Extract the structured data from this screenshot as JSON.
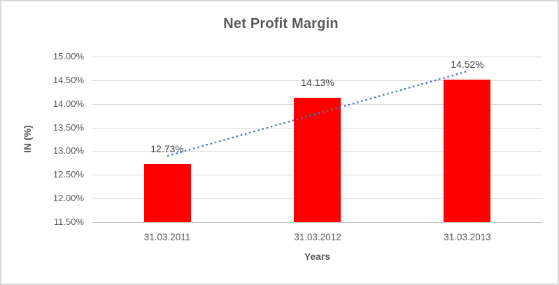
{
  "chart_data": {
    "type": "bar",
    "title": "Net Profit Margin",
    "categories": [
      "31.03.2011",
      "31.03.2012",
      "31.03.2013"
    ],
    "values": [
      12.73,
      14.13,
      14.52
    ],
    "data_labels": [
      "12.73%",
      "14.13%",
      "14.52%"
    ],
    "xlabel": "Years",
    "ylabel": "IN (%)",
    "ylim": [
      11.5,
      15.0
    ],
    "ytick_step": 0.5,
    "yticks": [
      "15.00%",
      "14.50%",
      "14.00%",
      "13.50%",
      "13.00%",
      "12.50%",
      "12.00%",
      "11.50%"
    ],
    "grid": true,
    "legend": "none",
    "bar_color": "#FF0000",
    "trendline": {
      "type": "linear",
      "style": "dotted",
      "color": "#4472C4"
    }
  },
  "colors": {
    "title_text": "#595959",
    "axis_text": "#595959",
    "data_label_text": "#404040",
    "gridline": "#D9D9D9",
    "frame_border": "#D9D9D9",
    "background": "#FFFFFF"
  }
}
